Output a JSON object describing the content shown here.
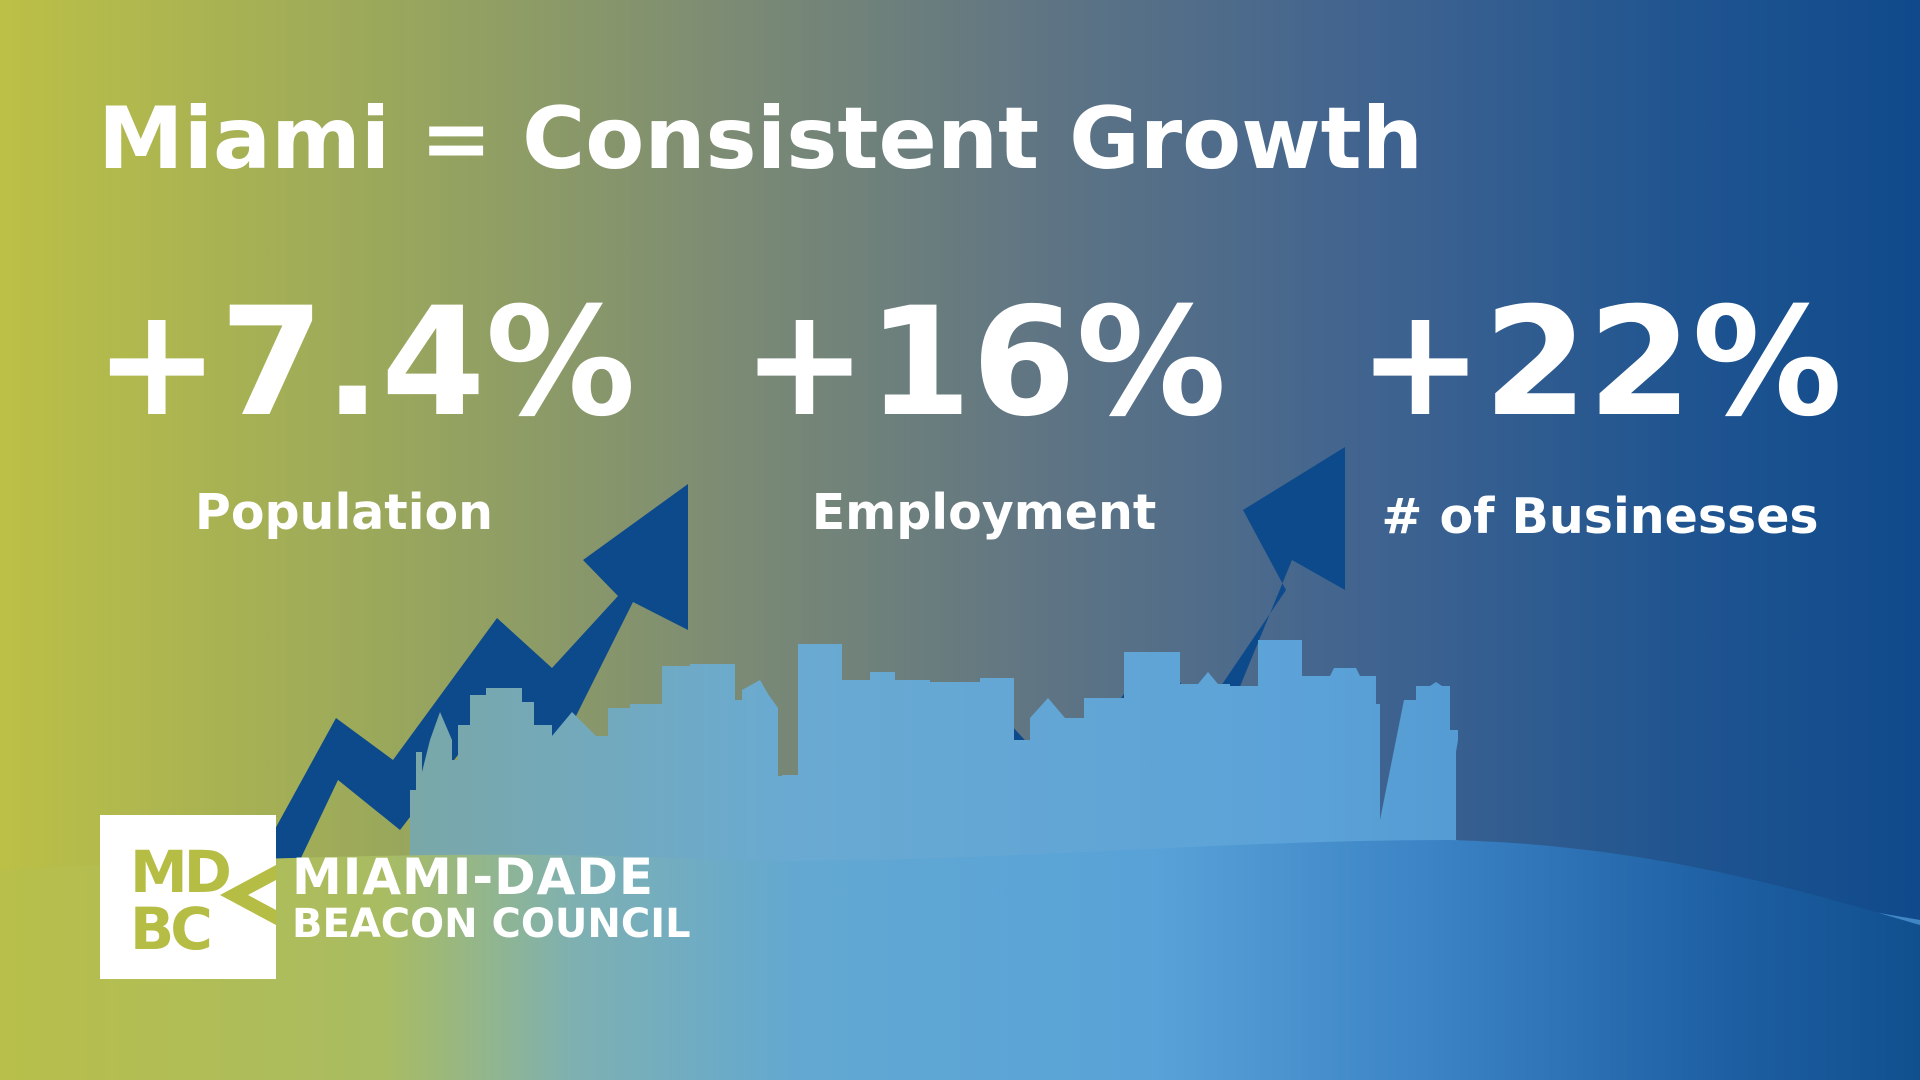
{
  "headline": "Miami = Consistent Growth",
  "stats": [
    {
      "value": "+7.4%",
      "label": "Population"
    },
    {
      "value": "+16%",
      "label": "Employment"
    },
    {
      "value": "+22%",
      "label": "# of Businesses"
    }
  ],
  "logo": {
    "monogram_top": "MD",
    "monogram_bottom": "BC",
    "line_1": "MIAMI-DADE",
    "line_2": "BEACON COUNCIL"
  },
  "icons": [
    "growth-arrow-icon",
    "city-skyline-icon",
    "mdbc-monogram-icon"
  ],
  "colors": {
    "background_left": "#bcc046",
    "background_right": "#104a8c",
    "arrow": "#0d4a8c",
    "skyline_light": "#5fa8d8",
    "text": "#ffffff"
  }
}
